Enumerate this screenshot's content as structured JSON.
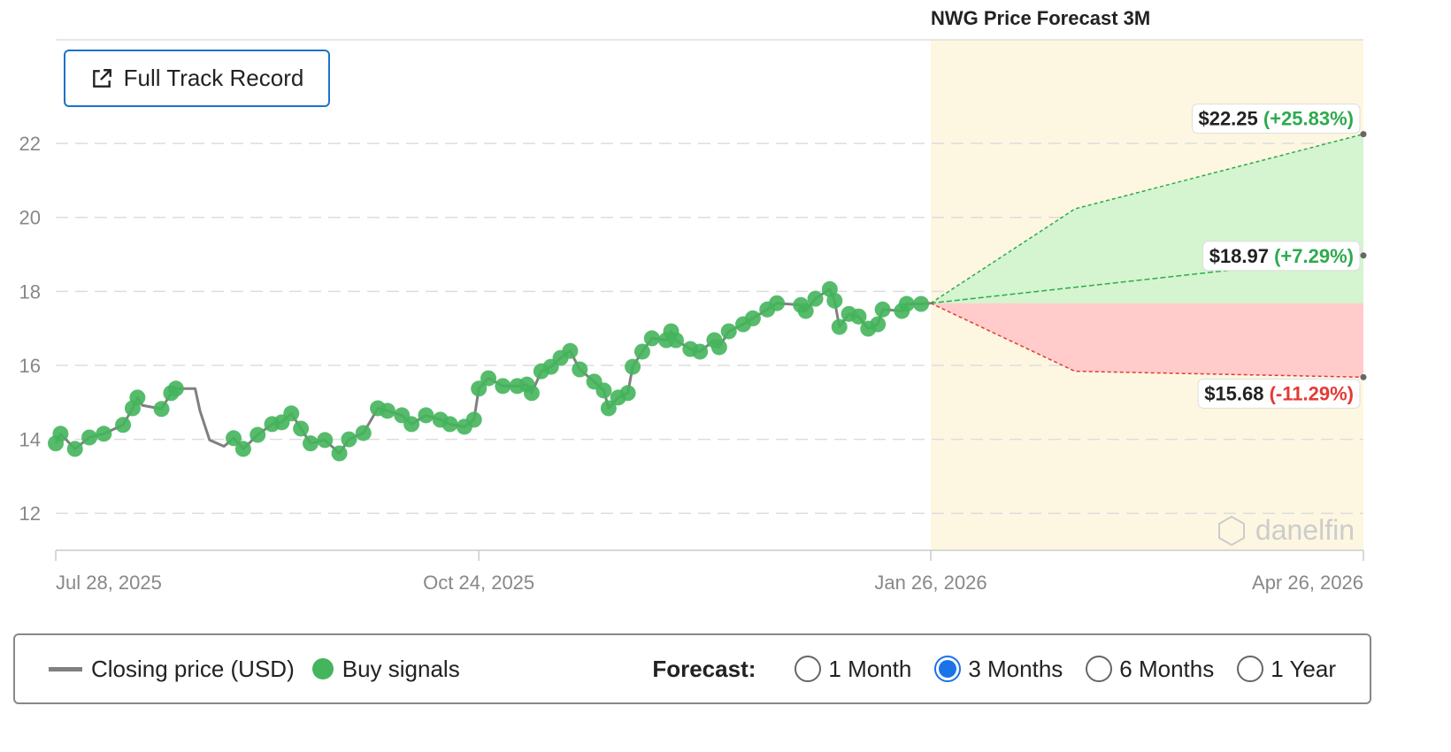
{
  "chart_data": {
    "type": "line",
    "title": "NWG Price Forecast 3M",
    "ylim": [
      11,
      24.8
    ],
    "xlim": [
      "2025-07-28",
      "2026-04-26"
    ],
    "yticks": [
      12,
      14,
      16,
      18,
      20,
      22
    ],
    "xticks": [
      "2025-07-28",
      "2025-10-24",
      "2026-01-26",
      "2026-04-26"
    ],
    "xtick_labels": [
      "Jul 28, 2025",
      "Oct 24, 2025",
      "Jan 26, 2026",
      "Apr 26, 2026"
    ],
    "grid": "horizontal-dashed",
    "colors": {
      "price": "#808080",
      "buy": "#44b55c",
      "forecast_bg": "#fdf7e1",
      "up": "#d4f5cf",
      "down": "#ffcccb",
      "green_text": "#2eaa4e",
      "red_text": "#e53935"
    },
    "series": [
      {
        "name": "Closing price (USD)",
        "points": [
          [
            "2025-07-28",
            13.89,
            1
          ],
          [
            "2025-07-29",
            14.15,
            1
          ],
          [
            "2025-08-01",
            13.74,
            1
          ],
          [
            "2025-08-04",
            14.05,
            1
          ],
          [
            "2025-08-07",
            14.15,
            1
          ],
          [
            "2025-08-11",
            14.39,
            1
          ],
          [
            "2025-08-13",
            14.84,
            1
          ],
          [
            "2025-08-14",
            15.13,
            1
          ],
          [
            "2025-08-15",
            14.92,
            0
          ],
          [
            "2025-08-19",
            14.82,
            1
          ],
          [
            "2025-08-21",
            15.25,
            1
          ],
          [
            "2025-08-22",
            15.37,
            1
          ],
          [
            "2025-08-26",
            15.37,
            0
          ],
          [
            "2025-08-27",
            14.77,
            0
          ],
          [
            "2025-08-29",
            13.98,
            0
          ],
          [
            "2025-09-01",
            13.81,
            0
          ],
          [
            "2025-09-03",
            14.03,
            1
          ],
          [
            "2025-09-05",
            13.74,
            1
          ],
          [
            "2025-09-08",
            14.12,
            1
          ],
          [
            "2025-09-11",
            14.41,
            1
          ],
          [
            "2025-09-13",
            14.46,
            1
          ],
          [
            "2025-09-15",
            14.7,
            1
          ],
          [
            "2025-09-17",
            14.29,
            1
          ],
          [
            "2025-09-19",
            13.89,
            1
          ],
          [
            "2025-09-22",
            13.98,
            1
          ],
          [
            "2025-09-25",
            13.62,
            1
          ],
          [
            "2025-09-27",
            14.0,
            1
          ],
          [
            "2025-09-30",
            14.17,
            1
          ],
          [
            "2025-10-03",
            14.84,
            1
          ],
          [
            "2025-10-05",
            14.77,
            1
          ],
          [
            "2025-10-08",
            14.65,
            1
          ],
          [
            "2025-10-10",
            14.41,
            1
          ],
          [
            "2025-10-13",
            14.65,
            1
          ],
          [
            "2025-10-16",
            14.53,
            1
          ],
          [
            "2025-10-18",
            14.41,
            1
          ],
          [
            "2025-10-21",
            14.34,
            1
          ],
          [
            "2025-10-23",
            14.53,
            1
          ],
          [
            "2025-10-24",
            15.37,
            1
          ],
          [
            "2025-10-26",
            15.65,
            1
          ],
          [
            "2025-10-29",
            15.44,
            1
          ],
          [
            "2025-11-01",
            15.44,
            1
          ],
          [
            "2025-11-03",
            15.48,
            1
          ],
          [
            "2025-11-04",
            15.25,
            1
          ],
          [
            "2025-11-06",
            15.84,
            1
          ],
          [
            "2025-11-08",
            15.96,
            1
          ],
          [
            "2025-11-10",
            16.2,
            1
          ],
          [
            "2025-11-12",
            16.39,
            1
          ],
          [
            "2025-11-14",
            15.89,
            1
          ],
          [
            "2025-11-17",
            15.56,
            1
          ],
          [
            "2025-11-19",
            15.32,
            1
          ],
          [
            "2025-11-20",
            14.84,
            1
          ],
          [
            "2025-11-22",
            15.13,
            1
          ],
          [
            "2025-11-24",
            15.25,
            1
          ],
          [
            "2025-11-25",
            15.96,
            1
          ],
          [
            "2025-11-27",
            16.37,
            1
          ],
          [
            "2025-11-29",
            16.73,
            1
          ],
          [
            "2025-12-02",
            16.68,
            1
          ],
          [
            "2025-12-03",
            16.92,
            1
          ],
          [
            "2025-12-04",
            16.68,
            1
          ],
          [
            "2025-12-07",
            16.44,
            1
          ],
          [
            "2025-12-09",
            16.37,
            1
          ],
          [
            "2025-12-12",
            16.68,
            1
          ],
          [
            "2025-12-13",
            16.49,
            1
          ],
          [
            "2025-12-15",
            16.92,
            1
          ],
          [
            "2025-12-18",
            17.11,
            1
          ],
          [
            "2025-12-20",
            17.27,
            1
          ],
          [
            "2025-12-23",
            17.51,
            1
          ],
          [
            "2025-12-25",
            17.68,
            1
          ],
          [
            "2025-12-30",
            17.63,
            1
          ],
          [
            "2025-12-31",
            17.47,
            1
          ],
          [
            "2026-01-02",
            17.8,
            1
          ],
          [
            "2026-01-05",
            18.06,
            1
          ],
          [
            "2026-01-06",
            17.75,
            1
          ],
          [
            "2026-01-07",
            17.04,
            1
          ],
          [
            "2026-01-09",
            17.39,
            1
          ],
          [
            "2026-01-11",
            17.32,
            1
          ],
          [
            "2026-01-13",
            16.99,
            1
          ],
          [
            "2026-01-15",
            17.11,
            1
          ],
          [
            "2026-01-16",
            17.51,
            1
          ],
          [
            "2026-01-20",
            17.47,
            1
          ],
          [
            "2026-01-21",
            17.66,
            1
          ],
          [
            "2026-01-24",
            17.66,
            1
          ],
          [
            "2026-01-26",
            17.68,
            0
          ]
        ]
      },
      {
        "name": "forecast-high",
        "points": [
          [
            "2026-01-26",
            17.68
          ],
          [
            "2026-02-25",
            20.23
          ],
          [
            "2026-04-26",
            22.25
          ]
        ],
        "label_price": "$22.25",
        "label_pct": "(+25.83%)"
      },
      {
        "name": "forecast-mid",
        "points": [
          [
            "2026-01-26",
            17.68
          ],
          [
            "2026-04-26",
            18.97
          ]
        ],
        "label_price": "$18.97",
        "label_pct": "(+7.29%)"
      },
      {
        "name": "forecast-low",
        "points": [
          [
            "2026-01-26",
            17.68
          ],
          [
            "2026-02-25",
            15.84
          ],
          [
            "2026-04-26",
            15.68
          ]
        ],
        "label_price": "$15.68",
        "label_pct": "(-11.29%)"
      }
    ]
  },
  "header": {
    "title": "NWG Price Forecast 3M",
    "full_track_record": "Full Track Record"
  },
  "watermark": "danelfin",
  "legend": {
    "closing": "Closing price (USD)",
    "buy": "Buy signals",
    "forecast_label": "Forecast:",
    "options": [
      {
        "label": "1 Month",
        "selected": false
      },
      {
        "label": "3 Months",
        "selected": true
      },
      {
        "label": "6 Months",
        "selected": false
      },
      {
        "label": "1 Year",
        "selected": false
      }
    ]
  }
}
